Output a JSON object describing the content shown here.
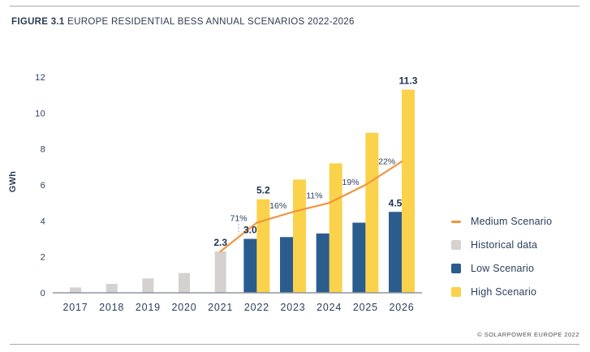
{
  "header": {
    "figure_label": "FIGURE 3.1",
    "title": "EUROPE RESIDENTIAL BESS ANNUAL SCENARIOS 2022-2026"
  },
  "legend": {
    "items": [
      {
        "label": "Medium Scenario",
        "swatch": "line",
        "color_key": "medium"
      },
      {
        "label": "Historical data",
        "swatch": "box",
        "color_key": "historical"
      },
      {
        "label": "Low Scenario",
        "swatch": "box",
        "color_key": "low"
      },
      {
        "label": "High Scenario",
        "swatch": "box",
        "color_key": "high"
      }
    ]
  },
  "footer": {
    "copyright": "© SOLARPOWER EUROPE 2022"
  },
  "colors": {
    "historical": "#D5D1CE",
    "low": "#2B5C8E",
    "high": "#FBD24B",
    "medium": "#F0953E",
    "text": "#2C3E5C",
    "value_label": "#1F3050",
    "axis": "#8D95A0",
    "dash_connector": "#9AA0A6"
  },
  "chart_data": {
    "type": "bar",
    "title": "FIGURE 3.1 EUROPE RESIDENTIAL BESS ANNUAL SCENARIOS 2022-2026",
    "categories": [
      "2017",
      "2018",
      "2019",
      "2020",
      "2021",
      "2022",
      "2023",
      "2024",
      "2025",
      "2026"
    ],
    "series": [
      {
        "name": "Historical data",
        "render": "bar",
        "color_key": "historical",
        "values": [
          0.3,
          0.5,
          0.8,
          1.1,
          2.3,
          null,
          null,
          null,
          null,
          null
        ],
        "labels": [
          null,
          null,
          null,
          null,
          "2.3",
          null,
          null,
          null,
          null,
          null
        ]
      },
      {
        "name": "Low Scenario",
        "render": "bar",
        "color_key": "low",
        "values": [
          null,
          null,
          null,
          null,
          null,
          3.0,
          3.1,
          3.3,
          3.9,
          4.5
        ],
        "labels": [
          null,
          null,
          null,
          null,
          null,
          "3.0",
          null,
          null,
          null,
          "4.5"
        ]
      },
      {
        "name": "High Scenario",
        "render": "bar",
        "color_key": "high",
        "values": [
          null,
          null,
          null,
          null,
          null,
          5.2,
          6.3,
          7.2,
          8.9,
          11.3
        ],
        "labels": [
          null,
          null,
          null,
          null,
          null,
          "5.2",
          null,
          null,
          null,
          "11.3"
        ]
      },
      {
        "name": "Medium Scenario",
        "render": "line",
        "color_key": "medium",
        "values": [
          null,
          null,
          null,
          null,
          2.3,
          3.9,
          4.5,
          5.0,
          6.0,
          7.3
        ],
        "growth_labels": [
          null,
          null,
          null,
          null,
          null,
          "71%",
          "16%",
          "11%",
          "19%",
          "22%"
        ]
      }
    ],
    "xlabel": "",
    "ylabel": "GWh",
    "yticks": [
      0,
      2,
      4,
      6,
      8,
      10,
      12
    ],
    "ylim": [
      0,
      12
    ],
    "grid": false,
    "legend_position": "right"
  }
}
